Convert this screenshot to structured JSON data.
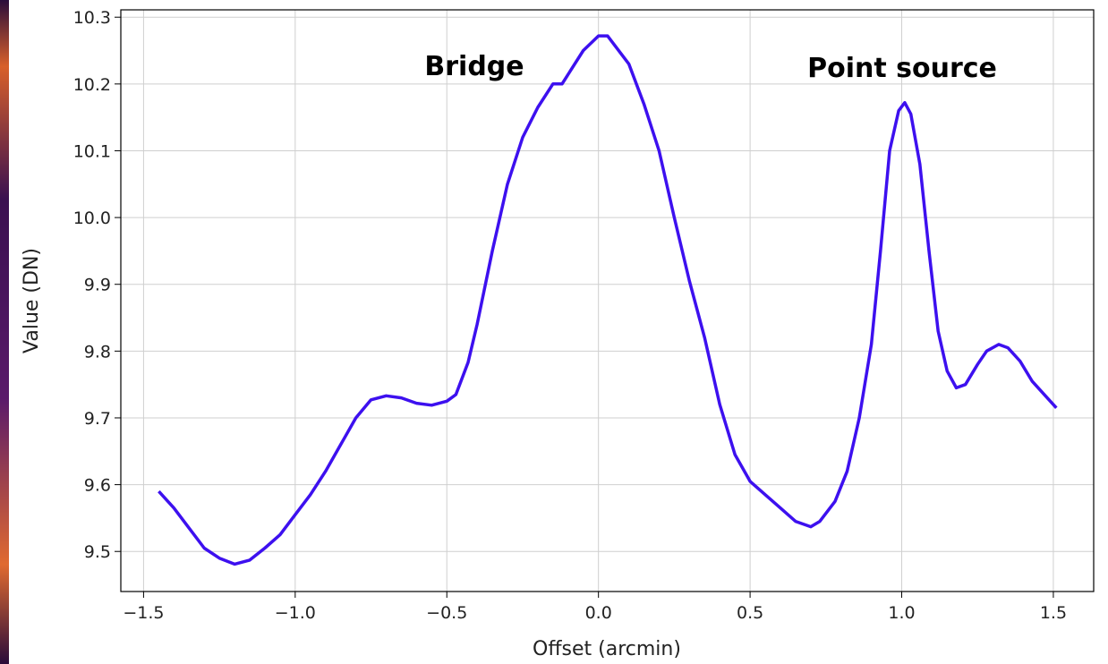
{
  "chart_data": {
    "type": "line",
    "xlabel": "Offset (arcmin)",
    "ylabel": "Value (DN)",
    "annotations": [
      "Bridge",
      "Point source"
    ],
    "x": [
      -1.45,
      -1.4,
      -1.35,
      -1.3,
      -1.25,
      -1.2,
      -1.15,
      -1.1,
      -1.05,
      -1.0,
      -0.95,
      -0.9,
      -0.85,
      -0.8,
      -0.75,
      -0.7,
      -0.65,
      -0.6,
      -0.55,
      -0.5,
      -0.47,
      -0.43,
      -0.4,
      -0.35,
      -0.3,
      -0.25,
      -0.2,
      -0.15,
      -0.12,
      -0.05,
      0.0,
      0.03,
      0.1,
      0.15,
      0.2,
      0.25,
      0.3,
      0.35,
      0.4,
      0.45,
      0.5,
      0.55,
      0.6,
      0.65,
      0.7,
      0.73,
      0.78,
      0.82,
      0.86,
      0.9,
      0.93,
      0.96,
      0.99,
      1.01,
      1.03,
      1.06,
      1.09,
      1.12,
      1.15,
      1.18,
      1.21,
      1.25,
      1.28,
      1.32,
      1.35,
      1.39,
      1.43,
      1.47,
      1.51
    ],
    "values": [
      9.59,
      9.565,
      9.535,
      9.505,
      9.49,
      9.481,
      9.487,
      9.505,
      9.525,
      9.555,
      9.585,
      9.62,
      9.66,
      9.7,
      9.727,
      9.733,
      9.73,
      9.722,
      9.719,
      9.725,
      9.735,
      9.783,
      9.84,
      9.95,
      10.05,
      10.12,
      10.165,
      10.2,
      10.2,
      10.25,
      10.272,
      10.272,
      10.23,
      10.17,
      10.1,
      10.0,
      9.905,
      9.82,
      9.72,
      9.645,
      9.605,
      9.585,
      9.565,
      9.545,
      9.537,
      9.545,
      9.575,
      9.62,
      9.7,
      9.81,
      9.95,
      10.1,
      10.16,
      10.172,
      10.155,
      10.08,
      9.95,
      9.83,
      9.77,
      9.745,
      9.75,
      9.78,
      9.8,
      9.81,
      9.805,
      9.785,
      9.755,
      9.735,
      9.715
    ],
    "color": "#3d10ef",
    "xlim": [
      -1.575,
      1.633
    ],
    "ylim": [
      9.44,
      10.311
    ],
    "xticks": [
      {
        "value": -1.5,
        "label": "−1.5"
      },
      {
        "value": -1.0,
        "label": "−1.0"
      },
      {
        "value": -0.5,
        "label": "−0.5"
      },
      {
        "value": 0,
        "label": "0.0"
      },
      0.5,
      {
        "value": 1.0,
        "label": "1.0"
      },
      1.5
    ],
    "yticks": [
      9.5,
      9.6,
      9.7,
      9.8,
      9.9,
      {
        "value": 10,
        "label": "10.0"
      },
      10.1,
      10.2,
      10.3
    ],
    "grid": true
  }
}
